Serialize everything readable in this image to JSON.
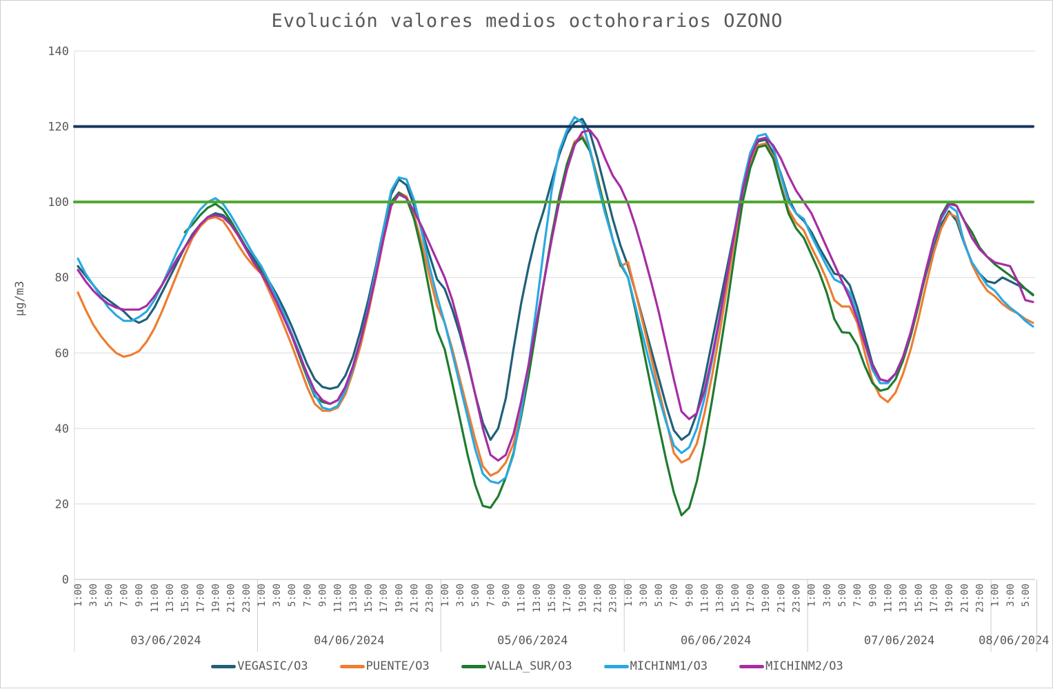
{
  "title": "Evolución valores medios octohorarios OZONO",
  "y_axis": {
    "label": "µg/m3",
    "ticks": [
      0,
      20,
      40,
      60,
      80,
      100,
      120,
      140
    ],
    "min": 0,
    "max": 140
  },
  "x_axis": {
    "days": [
      {
        "date": "03/06/2024",
        "tick_labels": [
          "1:00",
          "3:00",
          "5:00",
          "7:00",
          "9:00",
          "11:00",
          "13:00",
          "15:00",
          "17:00",
          "19:00",
          "21:00",
          "23:00"
        ],
        "points": 24
      },
      {
        "date": "04/06/2024",
        "tick_labels": [
          "1:00",
          "3:00",
          "5:00",
          "7:00",
          "9:00",
          "11:00",
          "13:00",
          "15:00",
          "17:00",
          "19:00",
          "21:00",
          "23:00"
        ],
        "points": 24
      },
      {
        "date": "05/06/2024",
        "tick_labels": [
          "1:00",
          "3:00",
          "5:00",
          "7:00",
          "9:00",
          "11:00",
          "13:00",
          "15:00",
          "17:00",
          "19:00",
          "21:00",
          "23:00"
        ],
        "points": 24
      },
      {
        "date": "06/06/2024",
        "tick_labels": [
          "1:00",
          "3:00",
          "5:00",
          "7:00",
          "9:00",
          "11:00",
          "13:00",
          "15:00",
          "17:00",
          "19:00",
          "21:00",
          "23:00"
        ],
        "points": 24
      },
      {
        "date": "07/06/2024",
        "tick_labels": [
          "1:00",
          "3:00",
          "5:00",
          "7:00",
          "9:00",
          "11:00",
          "13:00",
          "15:00",
          "17:00",
          "19:00",
          "21:00",
          "23:00"
        ],
        "points": 24
      },
      {
        "date": "08/06/2024",
        "tick_labels": [
          "1:00",
          "3:00",
          "5:00"
        ],
        "points": 6
      }
    ]
  },
  "colors": {
    "grid": "#D9D9D9",
    "axis": "#BFBFBF",
    "separator": "#CCCCCC",
    "text": "#595959"
  },
  "chart_data": {
    "type": "line",
    "title": "Evolución valores medios octohorarios OZONO",
    "ylabel": "µg/m3",
    "ylim": [
      0,
      140
    ],
    "grid": "horizontal",
    "legend_position": "bottom",
    "x_unit": "hour (hourly points, 1:00 03/06/2024 to 6:00 08/06/2024)",
    "reference_lines": [
      {
        "name": "limit-120",
        "value": 120,
        "color": "#17375E"
      },
      {
        "name": "limit-100",
        "value": 100,
        "color": "#4EA72E"
      }
    ],
    "series": [
      {
        "name": "VEGASIC/O3",
        "color": "#1F6078",
        "values": [
          83,
          80.5,
          78,
          75.5,
          74,
          72.5,
          71,
          69,
          68,
          69,
          72,
          76,
          80,
          84,
          88,
          91.5,
          94,
          96,
          97,
          96.5,
          94.5,
          91.5,
          88,
          85,
          82,
          79,
          75.5,
          71.5,
          67,
          62,
          57,
          53,
          51,
          50.5,
          51,
          54,
          59,
          66,
          74,
          83,
          93,
          102,
          106,
          104.5,
          99,
          92.5,
          86,
          79.5,
          77,
          71.5,
          65,
          57.5,
          49,
          41.5,
          37,
          40,
          48,
          61,
          73,
          83,
          91.5,
          98,
          105.5,
          112.5,
          118,
          121,
          122,
          118.5,
          111.5,
          103.5,
          95.5,
          88.5,
          83,
          76,
          68.5,
          61,
          53.5,
          46,
          39.5,
          37,
          38.5,
          44,
          53,
          63,
          73,
          83,
          93,
          103,
          111,
          116,
          116.5,
          113,
          107.5,
          101,
          97,
          95,
          92,
          88,
          84.5,
          81,
          80.5,
          78,
          72,
          64.5,
          57,
          53,
          52.5,
          54.5,
          59,
          65.5,
          73,
          81,
          88.5,
          94,
          97.5,
          95,
          89,
          84,
          81,
          79,
          78.5,
          80,
          79,
          78,
          77,
          75.5
        ]
      },
      {
        "name": "PUENTE/O3",
        "color": "#ED7D31",
        "values": [
          76,
          71.5,
          67.5,
          64.5,
          62,
          60,
          59,
          59.5,
          60.5,
          63,
          66.5,
          71,
          76,
          81,
          86,
          90.5,
          93.5,
          95.5,
          96,
          95,
          92,
          88.5,
          85.5,
          83,
          81,
          76.5,
          72,
          67,
          62,
          56.5,
          51,
          46.5,
          44.7,
          44.7,
          45.5,
          49,
          55,
          62,
          70.5,
          80,
          90,
          99,
          102.5,
          101.5,
          96.5,
          89,
          80.5,
          72.5,
          68,
          61,
          53,
          45,
          37,
          30,
          27.5,
          28.5,
          31,
          36,
          44.5,
          55,
          67,
          79,
          91,
          101,
          110,
          116,
          117.5,
          114,
          106.5,
          98,
          90,
          83,
          84,
          76,
          67.5,
          59,
          50.5,
          42,
          33.5,
          31,
          32,
          36,
          44,
          54,
          65.5,
          78,
          91,
          103,
          110.5,
          115,
          115.5,
          112,
          104.5,
          98,
          94.5,
          92.5,
          88,
          84,
          79.5,
          74,
          72.3,
          72.3,
          68,
          60,
          52.5,
          48.5,
          47,
          49.5,
          54.5,
          61,
          69,
          78,
          86.5,
          93,
          97,
          96,
          89.5,
          83.5,
          79.5,
          76.5,
          75,
          73,
          71.5,
          70.5,
          69,
          68
        ]
      },
      {
        "name": "VALLA_SUR/O3",
        "color": "#1F7B2F",
        "values": [
          null,
          null,
          null,
          null,
          null,
          null,
          null,
          null,
          null,
          null,
          null,
          null,
          null,
          null,
          92,
          94,
          96.5,
          98.5,
          99.5,
          98,
          95,
          91.5,
          87.5,
          84,
          82.5,
          78.5,
          74,
          69.5,
          64.5,
          59,
          53.5,
          48.5,
          47,
          46.5,
          47.5,
          51,
          56.5,
          63.5,
          71.5,
          81,
          91,
          100,
          102.5,
          101,
          95.5,
          87,
          76.5,
          66,
          61,
          52,
          42.5,
          33,
          25,
          19.5,
          19,
          22,
          27,
          33.5,
          43,
          54,
          66.5,
          79,
          91,
          101.5,
          110,
          115.5,
          117,
          113.5,
          106,
          98,
          90,
          83.5,
          80,
          71,
          61,
          51,
          41,
          31.5,
          23,
          17,
          19,
          26,
          36,
          47.5,
          60,
          73,
          87,
          100,
          109,
          114.5,
          115,
          111.5,
          104,
          97,
          93,
          90.5,
          86,
          81.5,
          76,
          69,
          65.5,
          65.3,
          62,
          56.5,
          52,
          50,
          50.5,
          53,
          58,
          64.5,
          72.5,
          81.5,
          90,
          96.5,
          100,
          99,
          95,
          92,
          88,
          85.5,
          83.5,
          82,
          80.5,
          79,
          77,
          75.3
        ]
      },
      {
        "name": "MICHINM1/O3",
        "color": "#29A9E1",
        "values": [
          85,
          81,
          78,
          75,
          72,
          70,
          68.5,
          68.5,
          69.5,
          71,
          74,
          78,
          82.5,
          87,
          91,
          95,
          98,
          100,
          101,
          99.5,
          96.5,
          93,
          89.5,
          86,
          83,
          79,
          74.5,
          70,
          65,
          60,
          54,
          49,
          45.5,
          45,
          46,
          50,
          56,
          63.5,
          72,
          82,
          93,
          103,
          106.5,
          106,
          100.5,
          92,
          83,
          75,
          68,
          60,
          51.5,
          43,
          34.5,
          28,
          26,
          25.5,
          27,
          33,
          44,
          57,
          72,
          88,
          103,
          113.5,
          119,
          122.5,
          121,
          114,
          105,
          97,
          90,
          84,
          80,
          72,
          64,
          56,
          48.5,
          41.5,
          35.5,
          33.5,
          35,
          40,
          48,
          58,
          69,
          81,
          93,
          104.5,
          113,
          117.5,
          118,
          114.5,
          107,
          100,
          97,
          95.5,
          91,
          87,
          83,
          79.5,
          78.5,
          76,
          70,
          62.5,
          55.5,
          52,
          52,
          54.5,
          59,
          65.5,
          73.5,
          82,
          89.5,
          95.5,
          99,
          97.5,
          89,
          84,
          81,
          78,
          76.5,
          74,
          72,
          70.5,
          68.5,
          67
        ]
      },
      {
        "name": "MICHINM2/O3",
        "color": "#A62DA4",
        "values": [
          82,
          79,
          76.5,
          74.5,
          73,
          72,
          71.5,
          71.5,
          71.5,
          72.5,
          75,
          78,
          81.5,
          85,
          88,
          91,
          94,
          96,
          96.5,
          96,
          94,
          91,
          87.5,
          84,
          81,
          77.5,
          73.5,
          69,
          64.5,
          59.5,
          54.5,
          50,
          47.5,
          46.5,
          47.5,
          51,
          56.5,
          63.5,
          71.5,
          80.5,
          90.5,
          99,
          102,
          101,
          97.5,
          93.5,
          89,
          84.5,
          80,
          74,
          66.5,
          58,
          49,
          40,
          33,
          31.5,
          33,
          38.5,
          47,
          57,
          68,
          79,
          90,
          100,
          108.5,
          115,
          118.5,
          119,
          116.5,
          111.5,
          107,
          104,
          99.5,
          93.5,
          86.5,
          79,
          71,
          62,
          53,
          44.5,
          42.5,
          44,
          50,
          59,
          69.5,
          81,
          92.5,
          103,
          111.5,
          116.5,
          117,
          115,
          111.5,
          107,
          103,
          100,
          97,
          92.5,
          88,
          83.5,
          79,
          74.5,
          69,
          62.5,
          56.5,
          53,
          52.5,
          54.5,
          59,
          65.5,
          73.5,
          82,
          90,
          96,
          99.5,
          99,
          95,
          90.5,
          87.5,
          85.5,
          84,
          83.5,
          83,
          79,
          74,
          73.5
        ]
      }
    ]
  },
  "legend": {
    "items": [
      {
        "label": "VEGASIC/O3",
        "color": "#1F6078"
      },
      {
        "label": "PUENTE/O3",
        "color": "#ED7D31"
      },
      {
        "label": "VALLA_SUR/O3",
        "color": "#1F7B2F"
      },
      {
        "label": "MICHINM1/O3",
        "color": "#29A9E1"
      },
      {
        "label": "MICHINM2/O3",
        "color": "#A62DA4"
      }
    ]
  }
}
